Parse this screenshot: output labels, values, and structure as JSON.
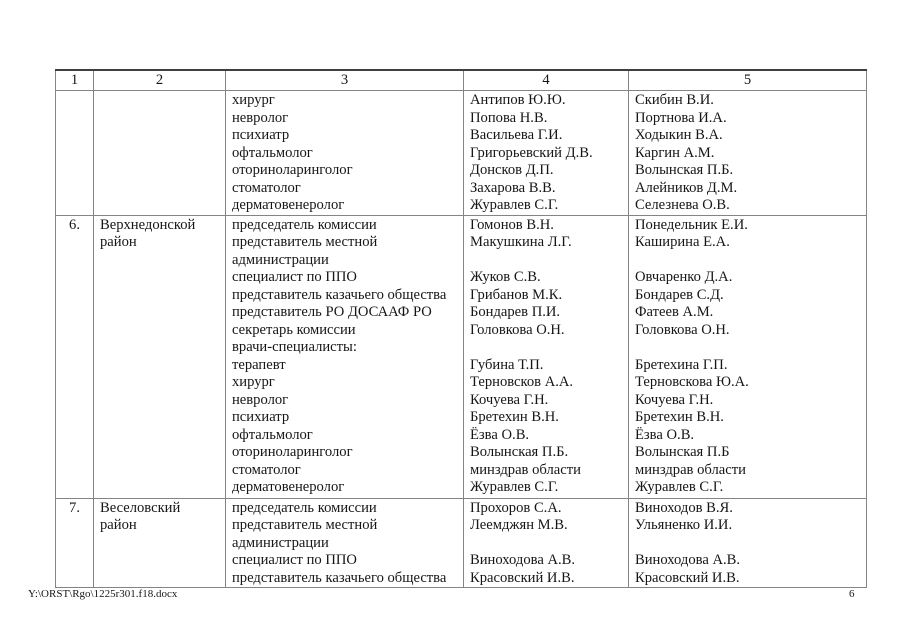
{
  "footer": {
    "document_path": "Y:\\ORST\\Rgo\\1225r301.f18.docx",
    "page_number": "6"
  },
  "table": {
    "header": [
      "1",
      "2",
      "3",
      "4",
      "5"
    ],
    "rows": [
      {
        "num": "",
        "district": [],
        "roles": [
          "хирург",
          "невролог",
          "психиатр",
          "офтальмолог",
          "оториноларинголог",
          "стоматолог",
          "дерматовенеролог"
        ],
        "members": [
          "Антипов Ю.Ю.",
          "Попова Н.В.",
          "Васильева Г.И.",
          "Григорьевский Д.В.",
          "Донсков Д.П.",
          "Захарова В.В.",
          "Журавлев С.Г."
        ],
        "reserve": [
          "Скибин В.И.",
          "Портнова И.А.",
          "Ходыкин В.А.",
          "Каргин А.М.",
          "Волынская П.Б.",
          "Алейников Д.М.",
          "Селезнева О.В."
        ]
      },
      {
        "num": "6.",
        "district": [
          "Верхнедонской",
          "район"
        ],
        "roles": [
          "председатель комиссии",
          "представитель местной",
          "администрации",
          "специалист по ППО",
          "представитель казачьего общества",
          "представитель РО ДОСААФ РО",
          "секретарь комиссии",
          "врачи-специалисты:",
          "терапевт",
          "хирург",
          "невролог",
          "психиатр",
          "офтальмолог",
          "оториноларинголог",
          "стоматолог",
          "дерматовенеролог"
        ],
        "members": [
          "Гомонов В.Н.",
          "Макушкина Л.Г.",
          "",
          "Жуков С.В.",
          "Грибанов М.К.",
          "Бондарев П.И.",
          "Головкова О.Н.",
          "",
          "Губина Т.П.",
          "Терновсков А.А.",
          "Кочуева Г.Н.",
          "Бретехин В.Н.",
          "Ёзва О.В.",
          "Волынская П.Б.",
          "минздрав области",
          "Журавлев С.Г."
        ],
        "reserve": [
          "Понедельник Е.И.",
          "Каширина Е.А.",
          "",
          "Овчаренко Д.А.",
          "Бондарев С.Д.",
          "Фатеев А.М.",
          "Головкова О.Н.",
          "",
          "Бретехина Г.П.",
          "Терновскова Ю.А.",
          "Кочуева Г.Н.",
          "Бретехин В.Н.",
          "Ёзва О.В.",
          "Волынская П.Б",
          "минздрав области",
          "Журавлев С.Г."
        ]
      },
      {
        "num": "7.",
        "district": [
          "Веселовский",
          "район"
        ],
        "roles": [
          "председатель комиссии",
          "представитель местной",
          "администрации",
          "специалист по ППО",
          "представитель казачьего общества"
        ],
        "members": [
          "Прохоров С.А.",
          "Леемджян М.В.",
          "",
          "Виноходова А.В.",
          "Красовский И.В."
        ],
        "reserve": [
          "Виноходов В.Я.",
          "Ульяненко И.И.",
          "",
          "Виноходова А.В.",
          "Красовский И.В."
        ]
      }
    ]
  }
}
